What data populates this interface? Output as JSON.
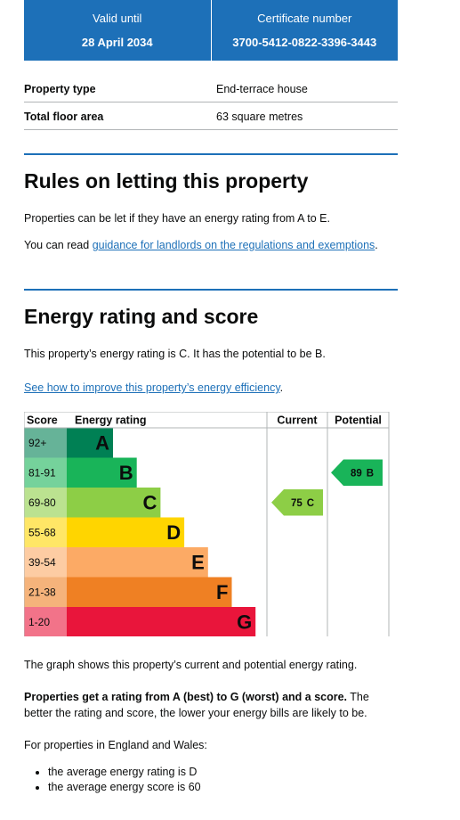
{
  "summary": [
    {
      "label": "Valid until",
      "value": "28 April 2034"
    },
    {
      "label": "Certificate number",
      "value": "3700-5412-0822-3396-3443"
    }
  ],
  "property": [
    {
      "label": "Property type",
      "value": "End-terrace house"
    },
    {
      "label": "Total floor area",
      "value": "63 square metres"
    }
  ],
  "rules": {
    "heading": "Rules on letting this property",
    "text": "Properties can be let if they have an energy rating from A to E.",
    "link_intro": "You can read",
    "link": "guidance for landlords on the regulations and exemptions",
    "link_end": "."
  },
  "energy": {
    "heading": "Energy rating and score",
    "text": "This property’s energy rating is C. It has the potential to be B.",
    "link": "See how to improve this property’s energy efficiency",
    "link_end": "."
  },
  "rating_graph": {
    "headers": [
      "Score",
      "Energy rating",
      "Current",
      "Potential"
    ],
    "bands": [
      {
        "range": "92+",
        "letter": "A"
      },
      {
        "range": "81-91",
        "letter": "B"
      },
      {
        "range": "69-80",
        "letter": "C"
      },
      {
        "range": "55-68",
        "letter": "D"
      },
      {
        "range": "39-54",
        "letter": "E"
      },
      {
        "range": "21-38",
        "letter": "F"
      },
      {
        "range": "1-20",
        "letter": "G"
      }
    ],
    "current": {
      "score": 75,
      "letter": "C"
    },
    "potential": {
      "score": 89,
      "letter": "B"
    }
  },
  "after": {
    "graph_note": "The graph shows this property’s current and potential energy rating.",
    "bold": "Properties get a rating from A (best) to G (worst) and a score.",
    "rest": "The better the rating and score, the lower your energy bills are likely to be.",
    "intro": "For properties in England and Wales:",
    "bullets": [
      "the average energy rating is D",
      "the average energy score is 60"
    ]
  }
}
